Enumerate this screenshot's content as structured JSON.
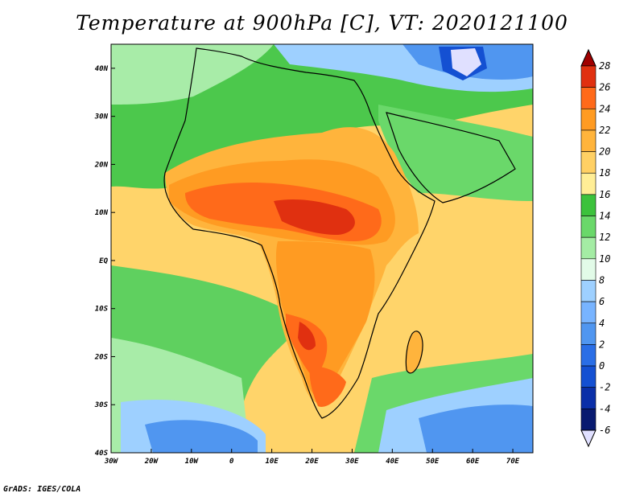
{
  "title": "Temperature at 900hPa [C], VT: 2020121100",
  "credit": "GrADS: IGES/COLA",
  "map": {
    "lat_labels": [
      "40N",
      "30N",
      "20N",
      "10N",
      "EQ",
      "10S",
      "20S",
      "30S",
      "40S"
    ],
    "lat_values": [
      40,
      30,
      20,
      10,
      0,
      -10,
      -20,
      -30,
      -40
    ],
    "lon_labels": [
      "30W",
      "20W",
      "10W",
      "0",
      "10E",
      "20E",
      "30E",
      "40E",
      "50E",
      "60E",
      "70E"
    ],
    "lon_values": [
      -30,
      -20,
      -10,
      0,
      10,
      20,
      30,
      40,
      50,
      60,
      70
    ],
    "lon_range": [
      -30,
      75
    ],
    "lat_range": [
      -40,
      45
    ]
  },
  "colorbar": {
    "labels": [
      "28",
      "26",
      "24",
      "22",
      "20",
      "18",
      "16",
      "14",
      "12",
      "10",
      "8",
      "6",
      "4",
      "2",
      "0",
      "-2",
      "-4",
      "-6"
    ],
    "colors": [
      "#a00000",
      "#e03010",
      "#ff6a1a",
      "#ff9b22",
      "#ffb43c",
      "#ffd064",
      "#ffee96",
      "#3cc23c",
      "#6ad86a",
      "#a4eca4",
      "#e2fbe8",
      "#9ed0ff",
      "#78b4ff",
      "#5096f0",
      "#2a6ee6",
      "#1450d2",
      "#0a2fa8",
      "#081a70",
      "#e0e0ff"
    ]
  }
}
